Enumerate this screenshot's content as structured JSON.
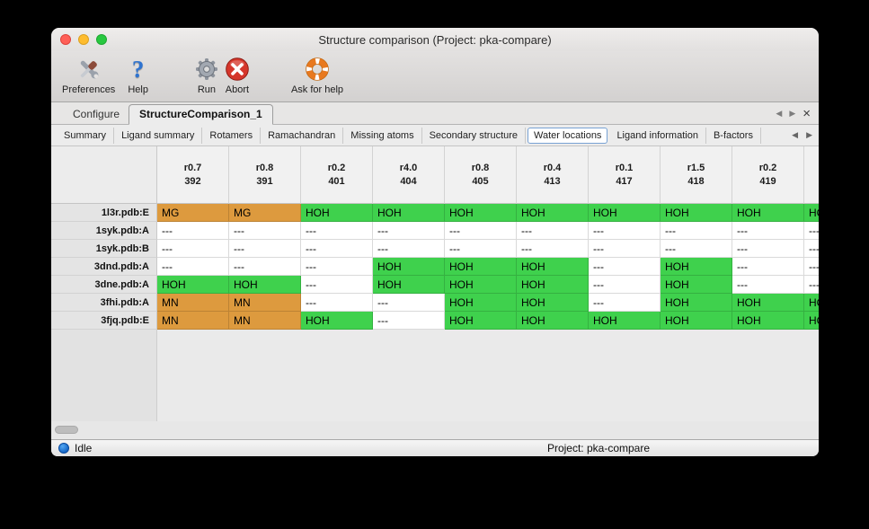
{
  "window": {
    "title": "Structure comparison (Project: pka-compare)",
    "controls": [
      "close",
      "minimize",
      "zoom"
    ]
  },
  "toolbar": {
    "items": [
      {
        "label": "Preferences",
        "icon": "tools-icon"
      },
      {
        "label": "Help",
        "icon": "help-icon"
      },
      {
        "label": "Run",
        "icon": "gear-icon"
      },
      {
        "label": "Abort",
        "icon": "abort-icon"
      },
      {
        "label": "Ask for help",
        "icon": "lifebuoy-icon"
      }
    ]
  },
  "tabs": {
    "items": [
      {
        "label": "Configure",
        "active": false
      },
      {
        "label": "StructureComparison_1",
        "active": true
      }
    ],
    "nav": {
      "back": "◀",
      "forward": "▶",
      "close": "×"
    }
  },
  "subtabs": {
    "items": [
      "Summary",
      "Ligand summary",
      "Rotamers",
      "Ramachandran",
      "Missing atoms",
      "Secondary structure",
      "Water locations",
      "Ligand information",
      "B-factors"
    ],
    "selected": "Water locations",
    "nav": {
      "back": "◀",
      "forward": "▶"
    }
  },
  "table": {
    "columns": [
      {
        "l1": "r0.7",
        "l2": "392"
      },
      {
        "l1": "r0.8",
        "l2": "391"
      },
      {
        "l1": "r0.2",
        "l2": "401"
      },
      {
        "l1": "r4.0",
        "l2": "404"
      },
      {
        "l1": "r0.8",
        "l2": "405"
      },
      {
        "l1": "r0.4",
        "l2": "413"
      },
      {
        "l1": "r0.1",
        "l2": "417"
      },
      {
        "l1": "r1.5",
        "l2": "418"
      },
      {
        "l1": "r0.2",
        "l2": "419"
      },
      {
        "l1": "",
        "l2": ""
      }
    ],
    "rows": [
      {
        "name": "1l3r.pdb:E",
        "cells": [
          [
            "MG",
            "orange"
          ],
          [
            "MG",
            "orange"
          ],
          [
            "HOH",
            "green"
          ],
          [
            "HOH",
            "green"
          ],
          [
            "HOH",
            "green"
          ],
          [
            "HOH",
            "green"
          ],
          [
            "HOH",
            "green"
          ],
          [
            "HOH",
            "green"
          ],
          [
            "HOH",
            "green"
          ],
          [
            "HOH",
            "green"
          ]
        ]
      },
      {
        "name": "1syk.pdb:A",
        "cells": [
          [
            "---",
            "none"
          ],
          [
            "---",
            "none"
          ],
          [
            "---",
            "none"
          ],
          [
            "---",
            "none"
          ],
          [
            "---",
            "none"
          ],
          [
            "---",
            "none"
          ],
          [
            "---",
            "none"
          ],
          [
            "---",
            "none"
          ],
          [
            "---",
            "none"
          ],
          [
            "---",
            "none"
          ]
        ]
      },
      {
        "name": "1syk.pdb:B",
        "cells": [
          [
            "---",
            "none"
          ],
          [
            "---",
            "none"
          ],
          [
            "---",
            "none"
          ],
          [
            "---",
            "none"
          ],
          [
            "---",
            "none"
          ],
          [
            "---",
            "none"
          ],
          [
            "---",
            "none"
          ],
          [
            "---",
            "none"
          ],
          [
            "---",
            "none"
          ],
          [
            "---",
            "none"
          ]
        ]
      },
      {
        "name": "3dnd.pdb:A",
        "cells": [
          [
            "---",
            "none"
          ],
          [
            "---",
            "none"
          ],
          [
            "---",
            "none"
          ],
          [
            "HOH",
            "green"
          ],
          [
            "HOH",
            "green"
          ],
          [
            "HOH",
            "green"
          ],
          [
            "---",
            "none"
          ],
          [
            "HOH",
            "green"
          ],
          [
            "---",
            "none"
          ],
          [
            "---",
            "none"
          ]
        ]
      },
      {
        "name": "3dne.pdb:A",
        "cells": [
          [
            "HOH",
            "green"
          ],
          [
            "HOH",
            "green"
          ],
          [
            "---",
            "none"
          ],
          [
            "HOH",
            "green"
          ],
          [
            "HOH",
            "green"
          ],
          [
            "HOH",
            "green"
          ],
          [
            "---",
            "none"
          ],
          [
            "HOH",
            "green"
          ],
          [
            "---",
            "none"
          ],
          [
            "---",
            "none"
          ]
        ]
      },
      {
        "name": "3fhi.pdb:A",
        "cells": [
          [
            "MN",
            "orange"
          ],
          [
            "MN",
            "orange"
          ],
          [
            "---",
            "none"
          ],
          [
            "---",
            "none"
          ],
          [
            "HOH",
            "green"
          ],
          [
            "HOH",
            "green"
          ],
          [
            "---",
            "none"
          ],
          [
            "HOH",
            "green"
          ],
          [
            "HOH",
            "green"
          ],
          [
            "HOH",
            "green"
          ]
        ]
      },
      {
        "name": "3fjq.pdb:E",
        "cells": [
          [
            "MN",
            "orange"
          ],
          [
            "MN",
            "orange"
          ],
          [
            "HOH",
            "green"
          ],
          [
            "---",
            "none"
          ],
          [
            "HOH",
            "green"
          ],
          [
            "HOH",
            "green"
          ],
          [
            "HOH",
            "green"
          ],
          [
            "HOH",
            "green"
          ],
          [
            "HOH",
            "green"
          ],
          [
            "HOH",
            "green"
          ]
        ]
      }
    ]
  },
  "statusbar": {
    "status_label": "Idle",
    "project_label": "Project: pka-compare"
  },
  "colors": {
    "cell_green": "#3fd14d",
    "cell_orange": "#dd9a3e",
    "traffic_red": "#ff5f57",
    "traffic_yellow": "#febc2e",
    "traffic_green": "#28c840",
    "status_blue": "#1668c8"
  }
}
